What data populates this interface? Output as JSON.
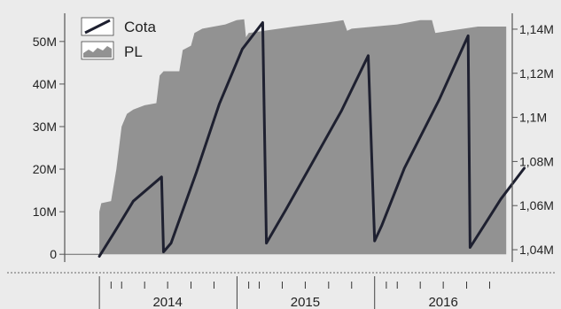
{
  "chart_data": {
    "type": "line",
    "x_axis": {
      "year_labels": [
        "2014",
        "2015",
        "2016"
      ],
      "range": [
        "2013-10-01",
        "2016-12-31"
      ]
    },
    "y_left": {
      "ticks": [
        0,
        10,
        20,
        30,
        40,
        50
      ],
      "tick_labels": [
        "0",
        "10M",
        "20M",
        "30M",
        "40M",
        "50M"
      ],
      "range": [
        -1,
        56
      ]
    },
    "y_right": {
      "ticks": [
        1.04,
        1.06,
        1.08,
        1.1,
        1.12,
        1.14
      ],
      "tick_labels": [
        "1,04M",
        "1,06M",
        "1,08M",
        "1,1M",
        "1,12M",
        "1,14M"
      ],
      "range": [
        1.036,
        1.146
      ]
    },
    "legend": {
      "position": "top-left"
    },
    "series": [
      {
        "name": "PL",
        "axis": "left",
        "style": "area",
        "color": "#929292",
        "points": [
          [
            "2014-01-01",
            0
          ],
          [
            "2014-01-01",
            10
          ],
          [
            "2014-01-06",
            12
          ],
          [
            "2014-02-01",
            12.5
          ],
          [
            "2014-02-15",
            20
          ],
          [
            "2014-03-01",
            30
          ],
          [
            "2014-03-15",
            33
          ],
          [
            "2014-04-01",
            34
          ],
          [
            "2014-05-01",
            35
          ],
          [
            "2014-06-01",
            35.5
          ],
          [
            "2014-06-10",
            42
          ],
          [
            "2014-06-20",
            43
          ],
          [
            "2014-08-01",
            43
          ],
          [
            "2014-08-10",
            48
          ],
          [
            "2014-09-01",
            49
          ],
          [
            "2014-09-10",
            52
          ],
          [
            "2014-10-01",
            53
          ],
          [
            "2014-12-01",
            54
          ],
          [
            "2014-12-31",
            55
          ],
          [
            "2015-01-20",
            55.2
          ],
          [
            "2015-01-25",
            51
          ],
          [
            "2015-02-01",
            52
          ],
          [
            "2015-06-01",
            53.5
          ],
          [
            "2015-09-01",
            54.5
          ],
          [
            "2015-10-10",
            55
          ],
          [
            "2015-10-20",
            52.5
          ],
          [
            "2015-11-01",
            53
          ],
          [
            "2016-03-01",
            54
          ],
          [
            "2016-05-01",
            55
          ],
          [
            "2016-06-01",
            55
          ],
          [
            "2016-06-10",
            52
          ],
          [
            "2016-10-01",
            53.5
          ],
          [
            "2016-12-15",
            53.5
          ],
          [
            "2016-12-15",
            0
          ]
        ]
      },
      {
        "name": "Cota",
        "axis": "right",
        "style": "line",
        "color": "#1e2030",
        "points": [
          [
            "2014-01-01",
            1.037
          ],
          [
            "2014-02-10",
            1.048
          ],
          [
            "2014-04-01",
            1.062
          ],
          [
            "2014-06-15",
            1.073
          ],
          [
            "2014-06-20",
            1.039
          ],
          [
            "2014-07-10",
            1.043
          ],
          [
            "2014-09-15",
            1.075
          ],
          [
            "2014-11-15",
            1.106
          ],
          [
            "2015-01-15",
            1.131
          ],
          [
            "2015-03-10",
            1.143
          ],
          [
            "2015-03-20",
            1.043
          ],
          [
            "2015-05-10",
            1.058
          ],
          [
            "2015-07-15",
            1.078
          ],
          [
            "2015-10-05",
            1.103
          ],
          [
            "2015-12-15",
            1.128
          ],
          [
            "2016-01-01",
            1.044
          ],
          [
            "2016-01-20",
            1.051
          ],
          [
            "2016-03-20",
            1.077
          ],
          [
            "2016-06-20",
            1.108
          ],
          [
            "2016-09-05",
            1.137
          ],
          [
            "2016-09-10",
            1.041
          ],
          [
            "2016-10-10",
            1.049
          ],
          [
            "2016-12-01",
            1.063
          ],
          [
            "2017-02-01",
            1.077
          ]
        ]
      }
    ]
  }
}
